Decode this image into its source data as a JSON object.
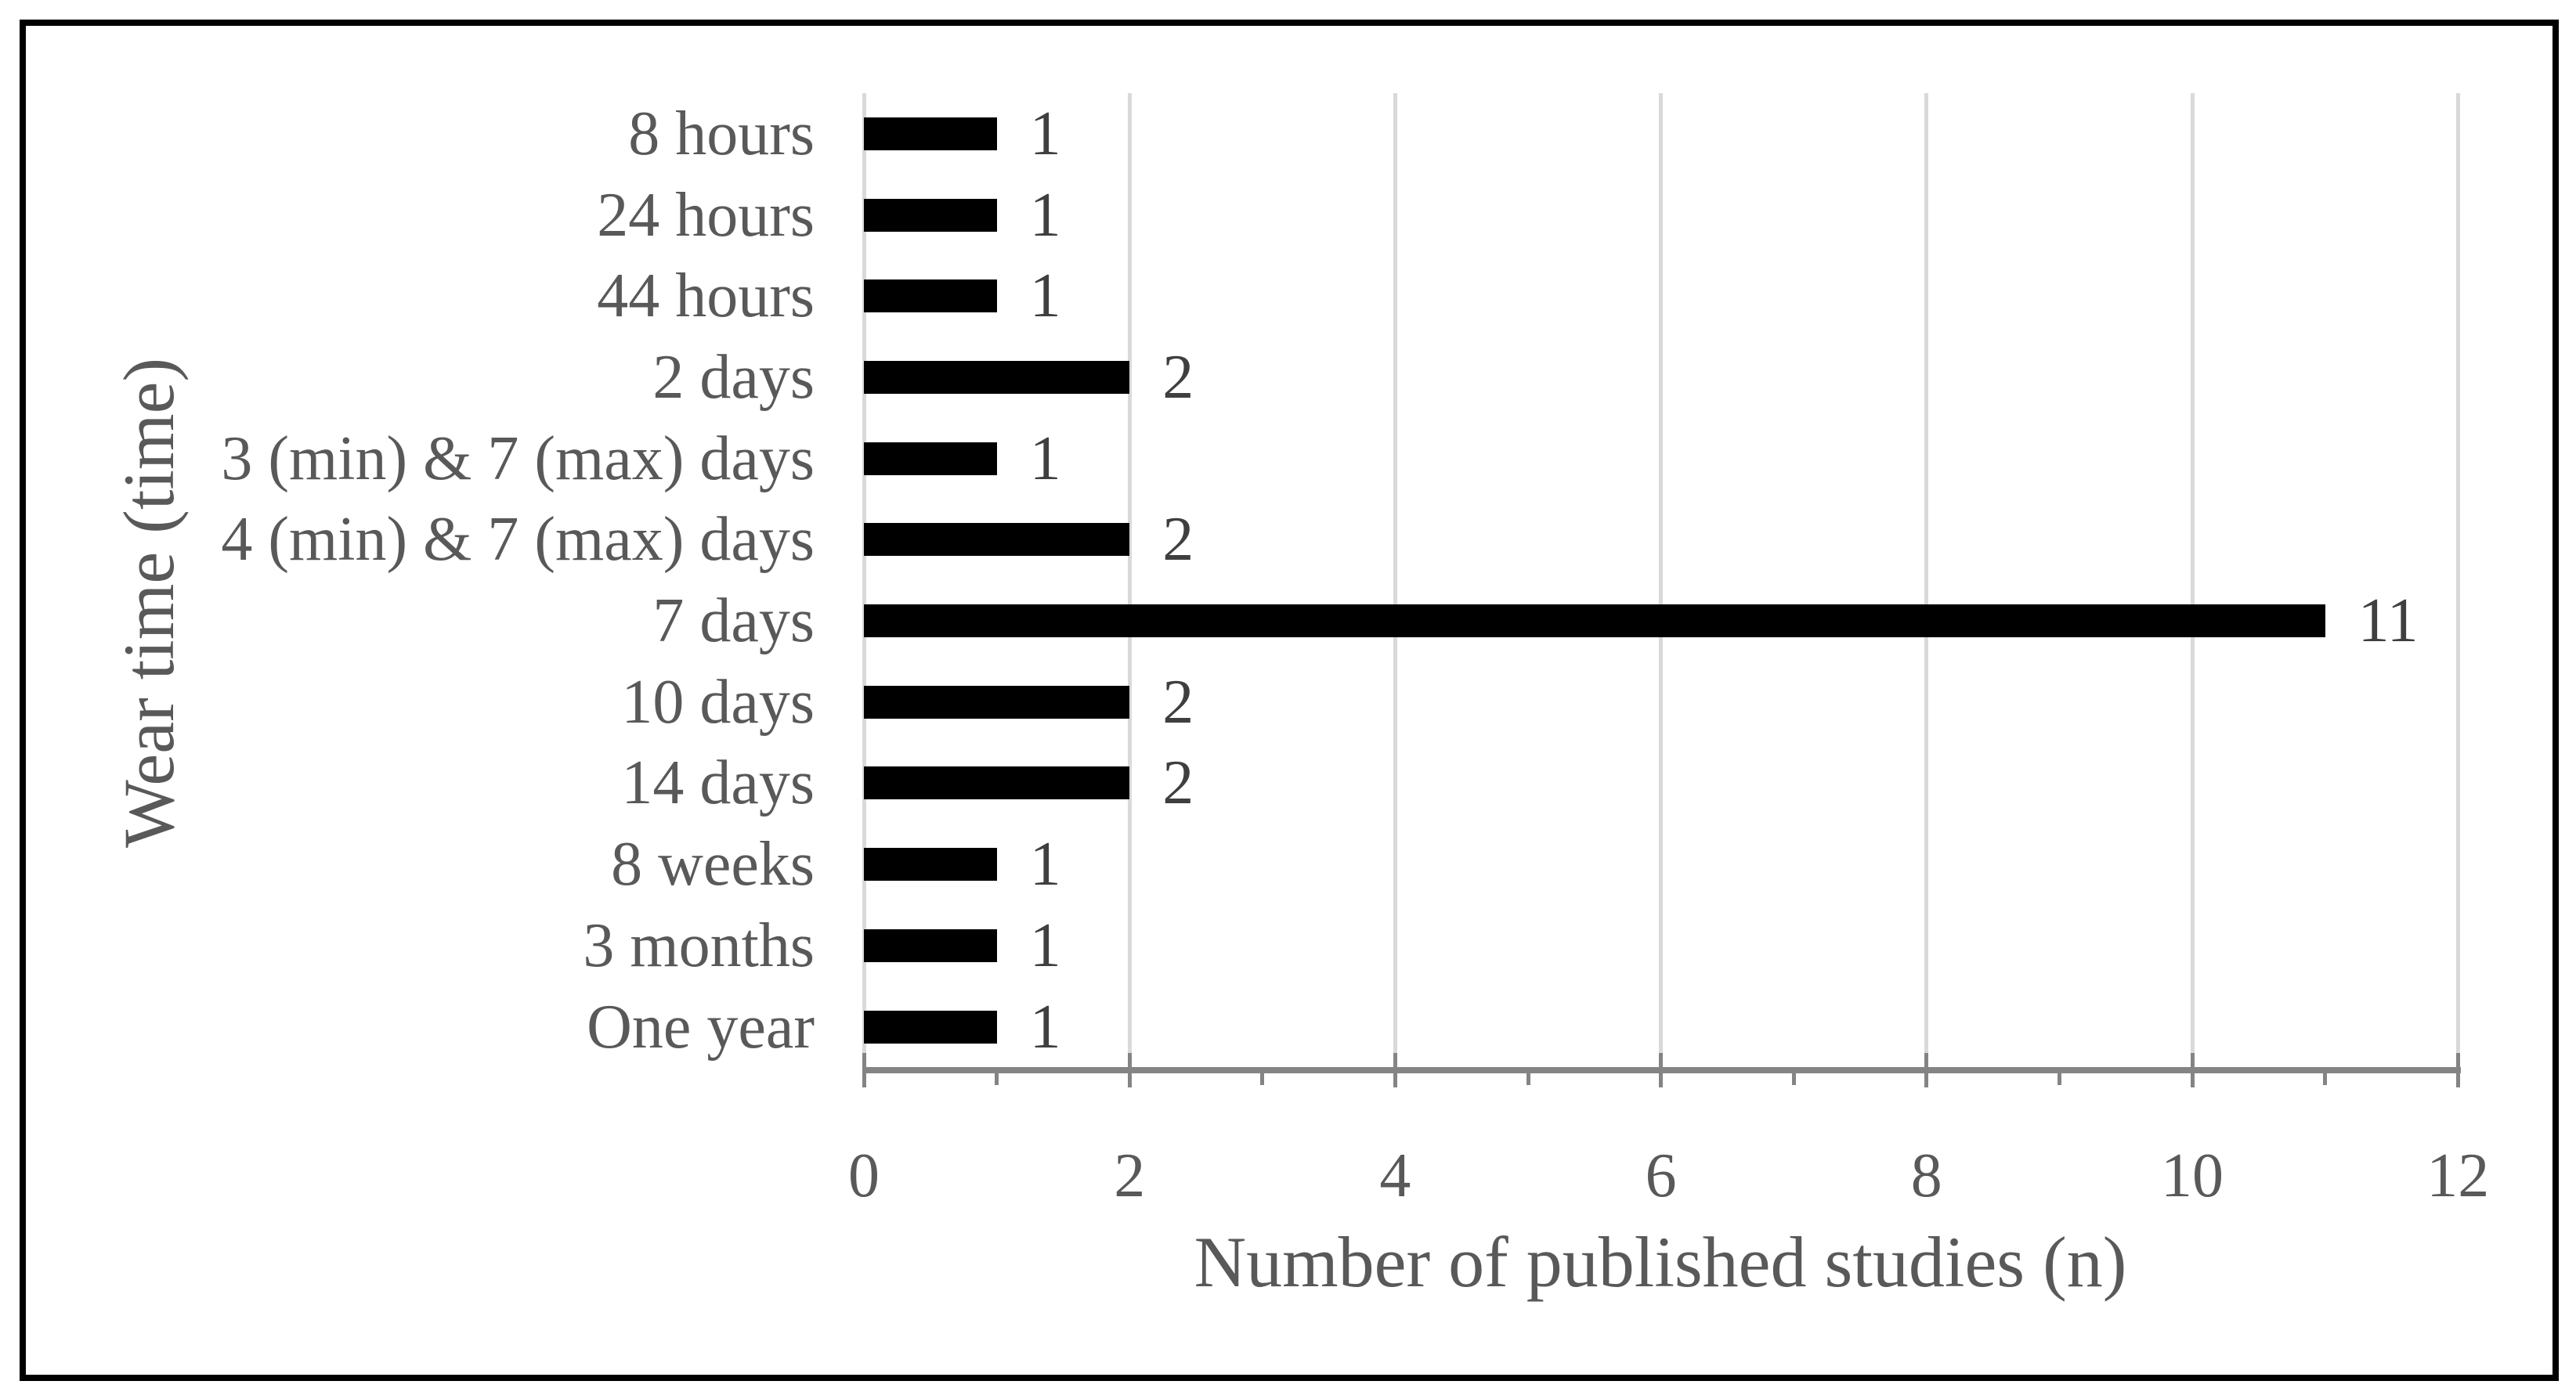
{
  "figure": {
    "background": "#ffffff",
    "border_color": "#000000"
  },
  "chart_data": {
    "type": "bar",
    "orientation": "horizontal",
    "title": "",
    "categories": [
      "8 hours",
      "24 hours",
      "44 hours",
      "2 days",
      "3 (min) & 7 (max) days",
      "4 (min) & 7 (max) days",
      "7 days",
      "10 days",
      "14 days",
      "8 weeks",
      "3 months",
      "One year"
    ],
    "values": [
      1,
      1,
      1,
      2,
      1,
      2,
      11,
      2,
      2,
      1,
      1,
      1
    ],
    "xlabel": "Number of published studies (n)",
    "ylabel": "Wear time (time)",
    "xlim": [
      0,
      12
    ],
    "x_major_ticks": [
      0,
      2,
      4,
      6,
      8,
      10,
      12
    ],
    "x_major_tick_labels": [
      "0",
      "2",
      "4",
      "6",
      "8",
      "10",
      "12"
    ],
    "x_minor_ticks": [
      1,
      3,
      5,
      7,
      9,
      11
    ],
    "gridlines_at": [
      0,
      2,
      4,
      6,
      8,
      10,
      12
    ],
    "grid": "vertical-only",
    "legend": "none",
    "colors": {
      "bar": "#000000",
      "gridline": "#d9d9d9",
      "axis_line": "#848484",
      "tick": "#848484",
      "tick_label": "#595959",
      "category_label": "#595959",
      "data_label": "#3f3f3f",
      "axis_title": "#595959"
    }
  }
}
